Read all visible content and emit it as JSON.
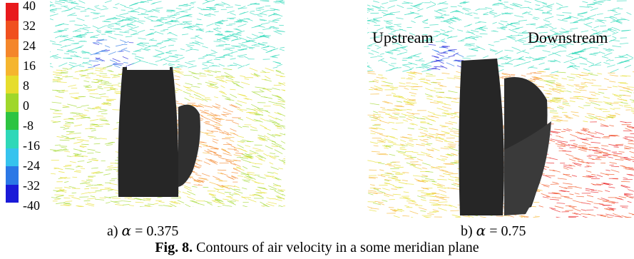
{
  "legend": {
    "ticks": [
      "40",
      "32",
      "24",
      "16",
      "8",
      "0",
      "-8",
      "-16",
      "-24",
      "-32",
      "-40"
    ],
    "colors": [
      "#e8191c",
      "#f0501e",
      "#f4862a",
      "#f5b52e",
      "#e6dd2c",
      "#9fd72a",
      "#2dc442",
      "#2ed8b8",
      "#36c3ee",
      "#2b78e6",
      "#1a1ad8"
    ]
  },
  "panels": [
    {
      "caption_prefix": "a)",
      "symbol": "α",
      "equals": "= 0.375"
    },
    {
      "caption_prefix": "b)",
      "symbol": "α",
      "equals": "= 0.75",
      "upstream_label": "Upstream",
      "downstream_label": "Downstream"
    }
  ],
  "figure": {
    "label": "Fig. 8.",
    "text": " Contours of air velocity in a some meridian plane"
  }
}
